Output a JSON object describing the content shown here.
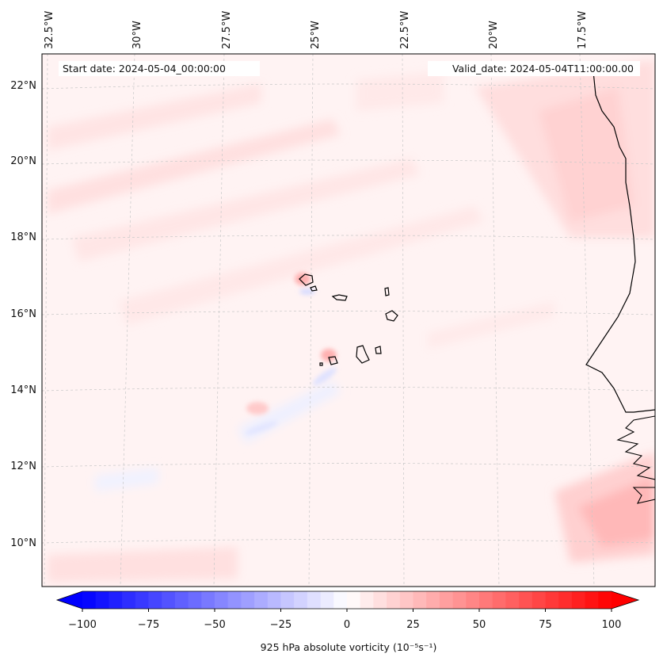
{
  "map": {
    "start_date": "Start date: 2024-05-04_00:00:00",
    "valid_date": "Valid_date: 2024-05-04T11:00:00.00",
    "lon_labels": [
      "32.5°W",
      "30°W",
      "27.5°W",
      "25°W",
      "22.5°W",
      "20°W",
      "17.5°W"
    ],
    "lat_labels": [
      "22°N",
      "20°N",
      "18°N",
      "16°N",
      "14°N",
      "12°N",
      "10°N"
    ],
    "variable": "925 hPa absolute vorticity",
    "units": "(10⁻⁵s⁻¹)"
  },
  "colorbar": {
    "tick_labels": [
      "−100",
      "−75",
      "−50",
      "−25",
      "0",
      "25",
      "50",
      "75",
      "100"
    ],
    "min": -100,
    "max": 100,
    "levels": 41,
    "colors": {
      "negative": "#0000ff",
      "neutral": "#ffffff",
      "positive": "#ff0000"
    }
  }
}
